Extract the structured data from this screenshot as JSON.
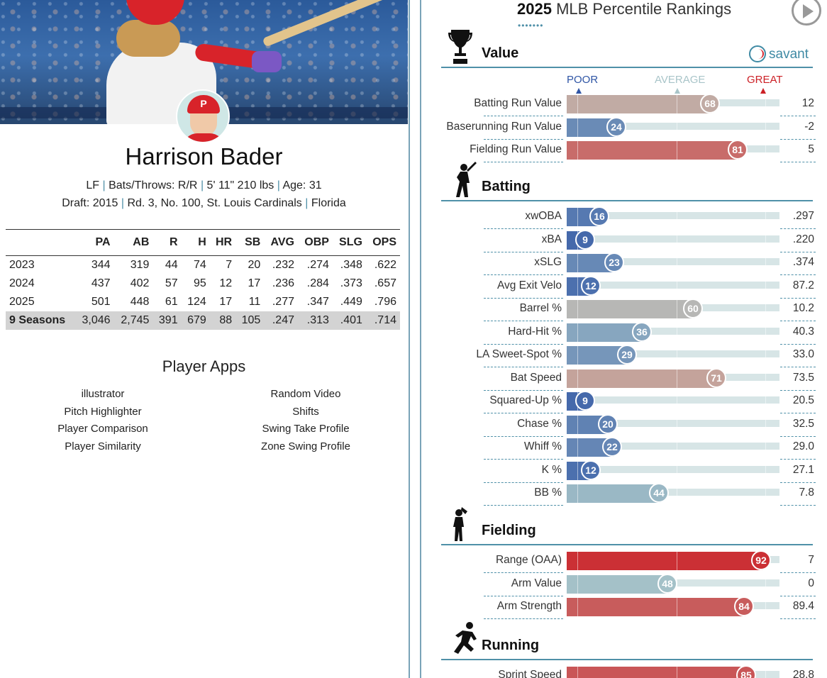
{
  "player": {
    "name": "Harrison Bader",
    "position": "LF",
    "bats_throws_label": "Bats/Throws:",
    "bats_throws": "R/R",
    "height_weight": "5' 11\" 210 lbs",
    "age_label": "Age:",
    "age": "31",
    "draft_label": "Draft:",
    "draft_year": "2015",
    "draft_pick": "Rd. 3, No. 100,",
    "draft_team": "St. Louis Cardinals",
    "school": "Florida",
    "cap_letter": "P"
  },
  "stats": {
    "headers": [
      "",
      "PA",
      "AB",
      "R",
      "H",
      "HR",
      "SB",
      "AVG",
      "OBP",
      "SLG",
      "OPS"
    ],
    "rows": [
      [
        "2023",
        "344",
        "319",
        "44",
        "74",
        "7",
        "20",
        ".232",
        ".274",
        ".348",
        ".622"
      ],
      [
        "2024",
        "437",
        "402",
        "57",
        "95",
        "12",
        "17",
        ".236",
        ".284",
        ".373",
        ".657"
      ],
      [
        "2025",
        "501",
        "448",
        "61",
        "124",
        "17",
        "11",
        ".277",
        ".347",
        ".449",
        ".796"
      ]
    ],
    "total": [
      "9 Seasons",
      "3,046",
      "2,745",
      "391",
      "679",
      "88",
      "105",
      ".247",
      ".313",
      ".401",
      ".714"
    ]
  },
  "apps": {
    "title": "Player Apps",
    "left": [
      "illustrator",
      "Pitch Highlighter",
      "Player Comparison",
      "Player Similarity"
    ],
    "right": [
      "Random Video",
      "Shifts",
      "Swing Take Profile",
      "Zone Swing Profile"
    ]
  },
  "rankings": {
    "year": "2025",
    "title": "MLB Percentile Rankings",
    "dots": "•••••••",
    "brand": "savant",
    "legend": {
      "poor": "POOR",
      "average": "AVERAGE",
      "great": "GREAT"
    },
    "colors": {
      "poor": "#2f55a5",
      "average": "#a9c5c9",
      "great": "#cc2026"
    },
    "sections": [
      {
        "title": "Value",
        "icon": "trophy-icon",
        "metrics": [
          {
            "label": "Batting Run Value",
            "pct": 68,
            "value": "12"
          },
          {
            "label": "Baserunning Run Value",
            "pct": 24,
            "value": "-2"
          },
          {
            "label": "Fielding Run Value",
            "pct": 81,
            "value": "5"
          }
        ]
      },
      {
        "title": "Batting",
        "icon": "batter-icon",
        "metrics": [
          {
            "label": "xwOBA",
            "pct": 16,
            "value": ".297"
          },
          {
            "label": "xBA",
            "pct": 9,
            "value": ".220"
          },
          {
            "label": "xSLG",
            "pct": 23,
            "value": ".374"
          },
          {
            "label": "Avg Exit Velo",
            "pct": 12,
            "value": "87.2"
          },
          {
            "label": "Barrel %",
            "pct": 60,
            "value": "10.2"
          },
          {
            "label": "Hard-Hit %",
            "pct": 36,
            "value": "40.3"
          },
          {
            "label": "LA Sweet-Spot %",
            "pct": 29,
            "value": "33.0"
          },
          {
            "label": "Bat Speed",
            "pct": 71,
            "value": "73.5"
          },
          {
            "label": "Squared-Up %",
            "pct": 9,
            "value": "20.5"
          },
          {
            "label": "Chase %",
            "pct": 20,
            "value": "32.5"
          },
          {
            "label": "Whiff %",
            "pct": 22,
            "value": "29.0"
          },
          {
            "label": "K %",
            "pct": 12,
            "value": "27.1"
          },
          {
            "label": "BB %",
            "pct": 44,
            "value": "7.8"
          }
        ]
      },
      {
        "title": "Fielding",
        "icon": "fielder-icon",
        "metrics": [
          {
            "label": "Range (OAA)",
            "pct": 92,
            "value": "7"
          },
          {
            "label": "Arm Value",
            "pct": 48,
            "value": "0"
          },
          {
            "label": "Arm Strength",
            "pct": 84,
            "value": "89.4"
          }
        ]
      },
      {
        "title": "Running",
        "icon": "runner-icon",
        "metrics": [
          {
            "label": "Sprint Speed",
            "pct": 85,
            "value": "28.8"
          }
        ]
      }
    ]
  }
}
